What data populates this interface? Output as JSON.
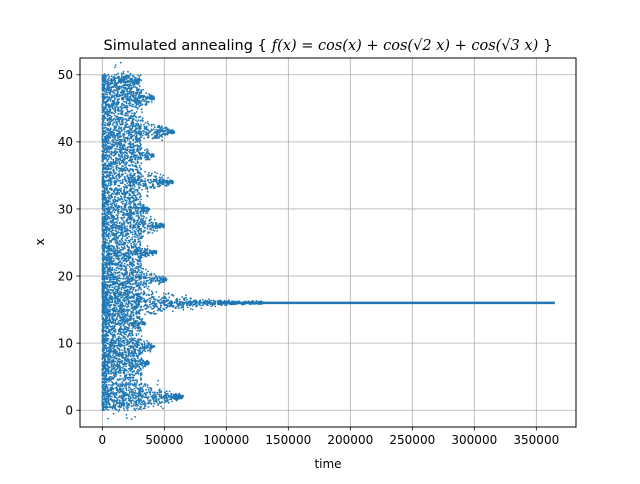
{
  "chart_data": {
    "type": "scatter",
    "title": "Simulated annealing { f(x) = cos(x) + cos(√2 x) + cos(√3 x) }",
    "title_prefix": "Simulated annealing {",
    "title_formula": "f(x) = cos(x) + cos(√2 x) + cos(√3 x)",
    "title_suffix": "}",
    "xlabel": "time",
    "ylabel": "x",
    "xlim": [
      -18000,
      382000
    ],
    "ylim": [
      -2.5,
      52.5
    ],
    "xticks": [
      0,
      50000,
      100000,
      150000,
      200000,
      250000,
      300000,
      350000
    ],
    "xtick_labels": [
      "0",
      "50000",
      "100000",
      "150000",
      "200000",
      "250000",
      "300000",
      "350000"
    ],
    "yticks": [
      0,
      10,
      20,
      30,
      40,
      50
    ],
    "ytick_labels": [
      "0",
      "10",
      "20",
      "30",
      "40",
      "50"
    ],
    "grid": true,
    "legend": false,
    "color": "#1f77b4",
    "series": [
      {
        "x_range": [
          0,
          365000
        ],
        "y_range": [
          0,
          50
        ],
        "description_points": [
          {
            "x": 0,
            "y": 50
          },
          {
            "x": 0,
            "y": 0
          },
          {
            "x": 55000,
            "y": 42
          },
          {
            "x": 50000,
            "y": 34
          },
          {
            "x": 55000,
            "y": 2
          },
          {
            "x": 130000,
            "y": 16
          },
          {
            "x": 365000,
            "y": 16
          }
        ]
      }
    ]
  }
}
